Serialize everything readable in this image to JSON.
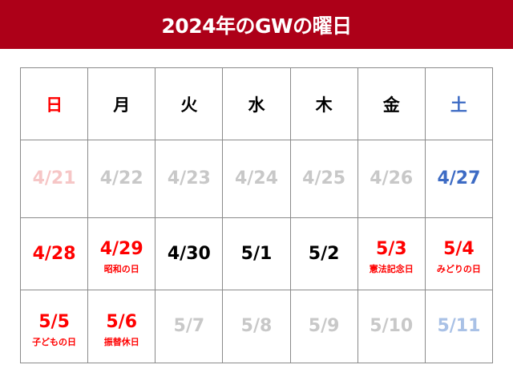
{
  "title": "2024年のGWの曜日",
  "colors": {
    "header_bg": "#ad0018",
    "holiday": "#ff0000",
    "weekday": "#000000",
    "saturday": "#3d6bc4",
    "muted": "#c8c8c8",
    "muted_holiday": "#f6c6c6",
    "muted_saturday": "#a9c1e6"
  },
  "weekdays": [
    {
      "label": "日",
      "color": "holiday"
    },
    {
      "label": "月",
      "color": "weekday"
    },
    {
      "label": "火",
      "color": "weekday"
    },
    {
      "label": "水",
      "color": "weekday"
    },
    {
      "label": "木",
      "color": "weekday"
    },
    {
      "label": "金",
      "color": "weekday"
    },
    {
      "label": "土",
      "color": "saturday"
    }
  ],
  "weeks": [
    [
      {
        "date": "4/21",
        "holiday": "",
        "color": "muted_holiday"
      },
      {
        "date": "4/22",
        "holiday": "",
        "color": "muted"
      },
      {
        "date": "4/23",
        "holiday": "",
        "color": "muted"
      },
      {
        "date": "4/24",
        "holiday": "",
        "color": "muted"
      },
      {
        "date": "4/25",
        "holiday": "",
        "color": "muted"
      },
      {
        "date": "4/26",
        "holiday": "",
        "color": "muted"
      },
      {
        "date": "4/27",
        "holiday": "",
        "color": "saturday"
      }
    ],
    [
      {
        "date": "4/28",
        "holiday": "",
        "color": "holiday"
      },
      {
        "date": "4/29",
        "holiday": "昭和の日",
        "color": "holiday"
      },
      {
        "date": "4/30",
        "holiday": "",
        "color": "weekday"
      },
      {
        "date": "5/1",
        "holiday": "",
        "color": "weekday"
      },
      {
        "date": "5/2",
        "holiday": "",
        "color": "weekday"
      },
      {
        "date": "5/3",
        "holiday": "憲法記念日",
        "color": "holiday"
      },
      {
        "date": "5/4",
        "holiday": "みどりの日",
        "color": "holiday"
      }
    ],
    [
      {
        "date": "5/5",
        "holiday": "子どもの日",
        "color": "holiday"
      },
      {
        "date": "5/6",
        "holiday": "振替休日",
        "color": "holiday"
      },
      {
        "date": "5/7",
        "holiday": "",
        "color": "muted"
      },
      {
        "date": "5/8",
        "holiday": "",
        "color": "muted"
      },
      {
        "date": "5/9",
        "holiday": "",
        "color": "muted"
      },
      {
        "date": "5/10",
        "holiday": "",
        "color": "muted"
      },
      {
        "date": "5/11",
        "holiday": "",
        "color": "muted_saturday"
      }
    ]
  ]
}
